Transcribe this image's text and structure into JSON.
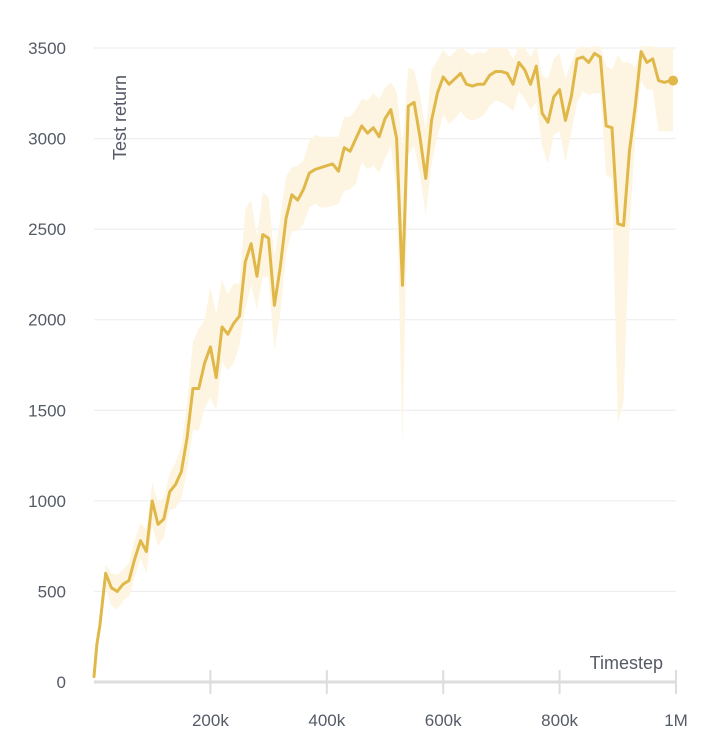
{
  "chart_data": {
    "type": "line",
    "xlabel": "Timestep",
    "ylabel": "Test return",
    "xlim": [
      0,
      1000000
    ],
    "ylim": [
      0,
      3500
    ],
    "x_ticks": [
      {
        "value": 200000,
        "label": "200k"
      },
      {
        "value": 400000,
        "label": "400k"
      },
      {
        "value": 600000,
        "label": "600k"
      },
      {
        "value": 800000,
        "label": "800k"
      },
      {
        "value": 1000000,
        "label": "1M"
      }
    ],
    "y_ticks": [
      {
        "value": 0,
        "label": "0"
      },
      {
        "value": 500,
        "label": "500"
      },
      {
        "value": 1000,
        "label": "1000"
      },
      {
        "value": 1500,
        "label": "1500"
      },
      {
        "value": 2000,
        "label": "2000"
      },
      {
        "value": 2500,
        "label": "2500"
      },
      {
        "value": 3000,
        "label": "3000"
      },
      {
        "value": 3500,
        "label": "3500"
      }
    ],
    "grid": true,
    "colors": {
      "line": "#e0b84a",
      "band": "#fdf5e1",
      "grid": "#ebebeb",
      "axis": "#dddddd"
    },
    "series": [
      {
        "x": [
          0,
          5000,
          10000,
          20000,
          30000,
          40000,
          50000,
          60000,
          70000,
          80000,
          90000,
          100000,
          110000,
          120000,
          130000,
          140000,
          150000,
          160000,
          170000,
          180000,
          190000,
          200000,
          210000,
          220000,
          230000,
          240000,
          250000,
          260000,
          270000,
          280000,
          290000,
          300000,
          310000,
          320000,
          330000,
          340000,
          350000,
          360000,
          370000,
          380000,
          390000,
          400000,
          410000,
          420000,
          430000,
          440000,
          450000,
          460000,
          470000,
          480000,
          490000,
          500000,
          510000,
          520000,
          530000,
          540000,
          550000,
          560000,
          570000,
          580000,
          590000,
          600000,
          610000,
          620000,
          630000,
          640000,
          650000,
          660000,
          670000,
          680000,
          690000,
          700000,
          710000,
          720000,
          730000,
          740000,
          750000,
          760000,
          770000,
          780000,
          790000,
          800000,
          810000,
          820000,
          830000,
          840000,
          850000,
          860000,
          870000,
          880000,
          890000,
          900000,
          910000,
          920000,
          930000,
          940000,
          950000,
          960000,
          970000,
          980000,
          990000,
          995000
        ],
        "y": [
          30,
          210,
          310,
          600,
          520,
          500,
          540,
          560,
          680,
          780,
          720,
          1000,
          870,
          900,
          1050,
          1090,
          1160,
          1350,
          1620,
          1620,
          1760,
          1850,
          1680,
          1960,
          1920,
          1980,
          2020,
          2320,
          2420,
          2240,
          2470,
          2450,
          2080,
          2290,
          2560,
          2690,
          2660,
          2720,
          2810,
          2830,
          2840,
          2850,
          2860,
          2820,
          2950,
          2930,
          3000,
          3070,
          3030,
          3060,
          3010,
          3110,
          3160,
          3000,
          2190,
          3180,
          3200,
          3010,
          2780,
          3100,
          3250,
          3340,
          3300,
          3330,
          3360,
          3300,
          3290,
          3300,
          3300,
          3350,
          3370,
          3370,
          3360,
          3300,
          3420,
          3380,
          3300,
          3400,
          3140,
          3090,
          3230,
          3270,
          3100,
          3230,
          3440,
          3450,
          3420,
          3470,
          3450,
          3070,
          3060,
          2530,
          2520,
          2930,
          3180,
          3480,
          3420,
          3440,
          3320,
          3310,
          3320,
          3320
        ],
        "lower": [
          10,
          170,
          270,
          530,
          420,
          400,
          450,
          470,
          580,
          680,
          600,
          860,
          750,
          800,
          950,
          960,
          1010,
          1170,
          1390,
          1390,
          1510,
          1570,
          1500,
          1770,
          1720,
          1760,
          1860,
          2060,
          2190,
          2060,
          2240,
          2230,
          1830,
          2030,
          2360,
          2490,
          2490,
          2530,
          2620,
          2640,
          2620,
          2620,
          2630,
          2640,
          2710,
          2720,
          2750,
          2870,
          2830,
          2850,
          2810,
          2890,
          2960,
          2710,
          1300,
          2910,
          2960,
          2800,
          2580,
          2860,
          3010,
          3130,
          3080,
          3110,
          3150,
          3110,
          3100,
          3110,
          3130,
          3180,
          3210,
          3200,
          3180,
          3150,
          3260,
          3220,
          3160,
          3200,
          2960,
          2860,
          3020,
          3040,
          2870,
          3030,
          3200,
          3260,
          3240,
          3250,
          3250,
          2800,
          2780,
          1430,
          1550,
          2480,
          3010,
          3320,
          3270,
          3270,
          3040,
          3040,
          3040,
          3040
        ],
        "upper": [
          50,
          250,
          350,
          650,
          600,
          590,
          620,
          660,
          780,
          880,
          840,
          1100,
          990,
          1020,
          1150,
          1210,
          1300,
          1540,
          1880,
          1950,
          2000,
          2180,
          2030,
          2220,
          2140,
          2200,
          2200,
          2610,
          2660,
          2460,
          2700,
          2680,
          2350,
          2560,
          2790,
          2840,
          2850,
          2880,
          2990,
          3020,
          3010,
          3010,
          3010,
          3010,
          3120,
          3120,
          3160,
          3220,
          3210,
          3250,
          3220,
          3280,
          3310,
          3260,
          2960,
          3390,
          3380,
          3240,
          3050,
          3380,
          3430,
          3490,
          3450,
          3480,
          3510,
          3480,
          3460,
          3480,
          3470,
          3500,
          3500,
          3500,
          3500,
          3440,
          3510,
          3500,
          3450,
          3510,
          3350,
          3330,
          3440,
          3470,
          3330,
          3420,
          3500,
          3510,
          3500,
          3510,
          3510,
          3400,
          3380,
          3460,
          3420,
          3420,
          3390,
          3510,
          3510,
          3510,
          3500,
          3500,
          3500,
          3500
        ]
      }
    ]
  }
}
